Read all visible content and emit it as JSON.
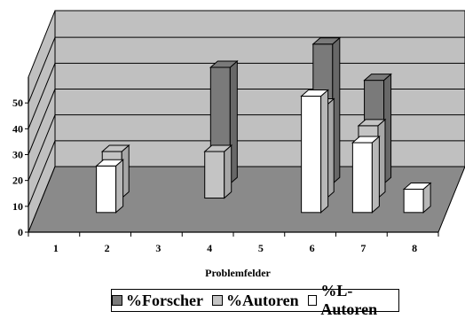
{
  "chart_data": {
    "type": "bar",
    "style": "3d-clustered-columns",
    "xlabel": "Problemfelder",
    "categories": [
      "1",
      "2",
      "3",
      "4",
      "5",
      "6",
      "7",
      "8"
    ],
    "yticks": [
      "0",
      "10",
      "20",
      "30",
      "40",
      "50"
    ],
    "ylim": [
      0,
      60
    ],
    "grid": true,
    "legend_position": "bottom",
    "series": [
      {
        "name": "%Forscher",
        "color": "#7a7a7a",
        "values": [
          0,
          0,
          0,
          45,
          0,
          54,
          40,
          0
        ]
      },
      {
        "name": "%Autoren",
        "color": "#c4c4c4",
        "values": [
          0,
          18,
          0,
          18,
          0,
          36,
          28,
          0
        ]
      },
      {
        "name": "%L-Autoren",
        "color": "#ffffff",
        "values": [
          0,
          18,
          0,
          0,
          0,
          45,
          27,
          9
        ]
      }
    ],
    "floor_color": "#8a8a8a",
    "wall_color": "#c0c0c0"
  }
}
